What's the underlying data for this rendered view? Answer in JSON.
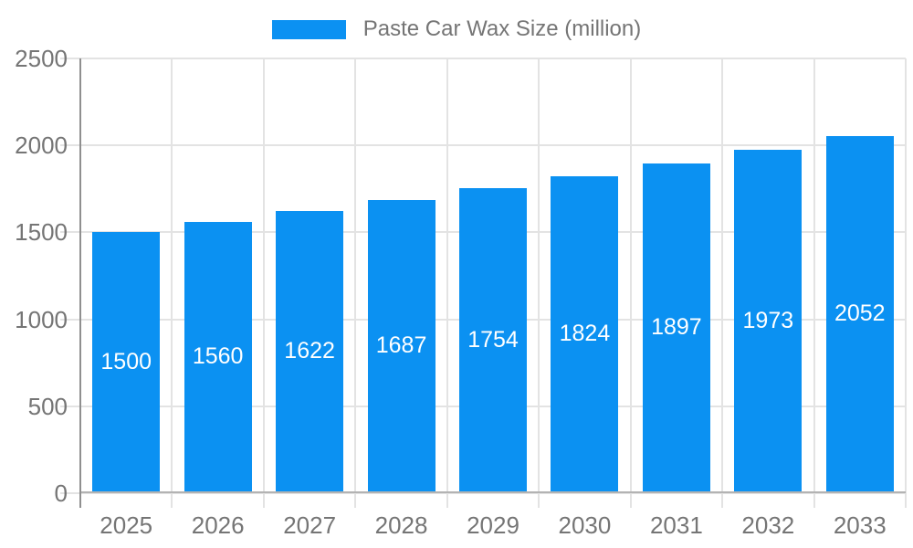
{
  "legend": {
    "label": "Paste Car Wax Size (million)"
  },
  "chart_data": {
    "type": "bar",
    "title": "Paste Car Wax Size (million)",
    "series_name": "Paste Car Wax Size (million)",
    "categories": [
      "2025",
      "2026",
      "2027",
      "2028",
      "2029",
      "2030",
      "2031",
      "2032",
      "2033"
    ],
    "values": [
      1500,
      1560,
      1622,
      1687,
      1754,
      1824,
      1897,
      1973,
      2052
    ],
    "xlabel": "",
    "ylabel": "",
    "ylim": [
      0,
      2500
    ],
    "yticks": [
      0,
      500,
      1000,
      1500,
      2000,
      2500
    ],
    "grid": true,
    "legend_position": "top-center",
    "value_label_position": "inside-center",
    "colors": {
      "bar": "#0b91f2",
      "value_label": "#ffffff",
      "axis_text": "#757575",
      "legend_text": "#757575",
      "gridline": "#e3e3e3",
      "y_axis_line": "#8f8f8f",
      "x_axis_line": "#b3b3b3",
      "background": "#ffffff"
    }
  }
}
